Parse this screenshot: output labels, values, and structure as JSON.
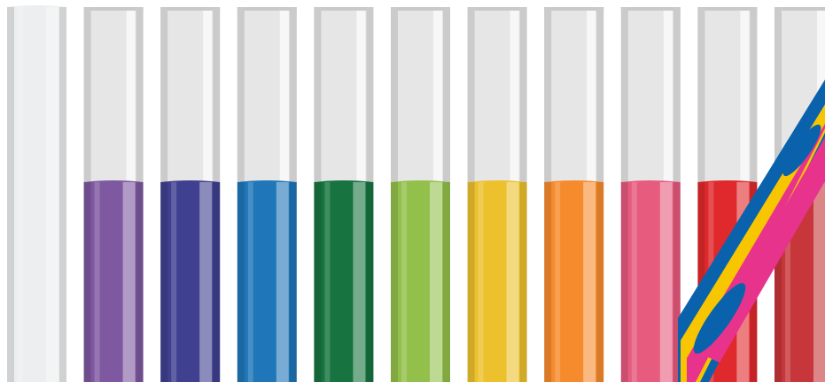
{
  "tubes": [
    {
      "color": "#eceeef"
    },
    {
      "color": "#7e58a0"
    },
    {
      "color": "#3f408f"
    },
    {
      "color": "#1f76b8"
    },
    {
      "color": "#17733f"
    },
    {
      "color": "#93c04b"
    },
    {
      "color": "#ecc12d"
    },
    {
      "color": "#f68b2d"
    },
    {
      "color": "#e65b7e"
    },
    {
      "color": "#e0292c"
    },
    {
      "color": "#c6363a"
    }
  ]
}
